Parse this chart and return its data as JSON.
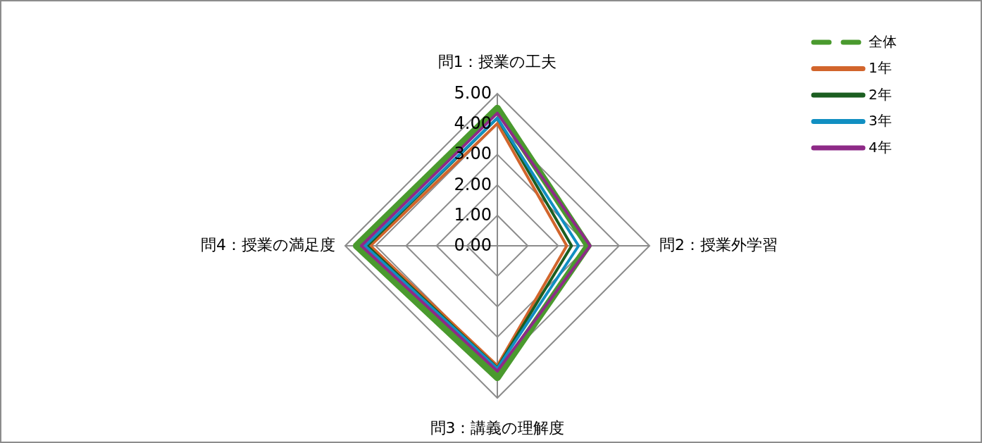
{
  "chart_data": {
    "type": "radar",
    "categories": [
      "問1：授業の工夫",
      "問2：授業外学習",
      "問3：講義の理解度",
      "問4：授業の満足度"
    ],
    "ylim": [
      0,
      5
    ],
    "yticks": [
      {
        "value": 0,
        "label": "0.00"
      },
      {
        "value": 1,
        "label": "1.00"
      },
      {
        "value": 2,
        "label": "2.00"
      },
      {
        "value": 3,
        "label": "3.00"
      },
      {
        "value": 4,
        "label": "4.00"
      },
      {
        "value": 5,
        "label": "5.00"
      }
    ],
    "grid": true,
    "legend": "top right",
    "series": [
      {
        "name": "全体",
        "color": "#4a9a2e",
        "line_style": "dashed",
        "values": [
          4.52,
          2.98,
          4.33,
          4.63
        ]
      },
      {
        "name": "1年",
        "color": "#d2652c",
        "values": [
          4.02,
          2.28,
          3.94,
          4.17
        ]
      },
      {
        "name": "2年",
        "color": "#1b5e20",
        "values": [
          4.2,
          2.44,
          4.01,
          4.28
        ]
      },
      {
        "name": "3年",
        "color": "#118fc2",
        "values": [
          4.2,
          2.67,
          4.03,
          4.35
        ]
      },
      {
        "name": "4年",
        "color": "#8e2a87",
        "values": [
          4.36,
          3.05,
          4.12,
          4.47
        ]
      }
    ]
  }
}
